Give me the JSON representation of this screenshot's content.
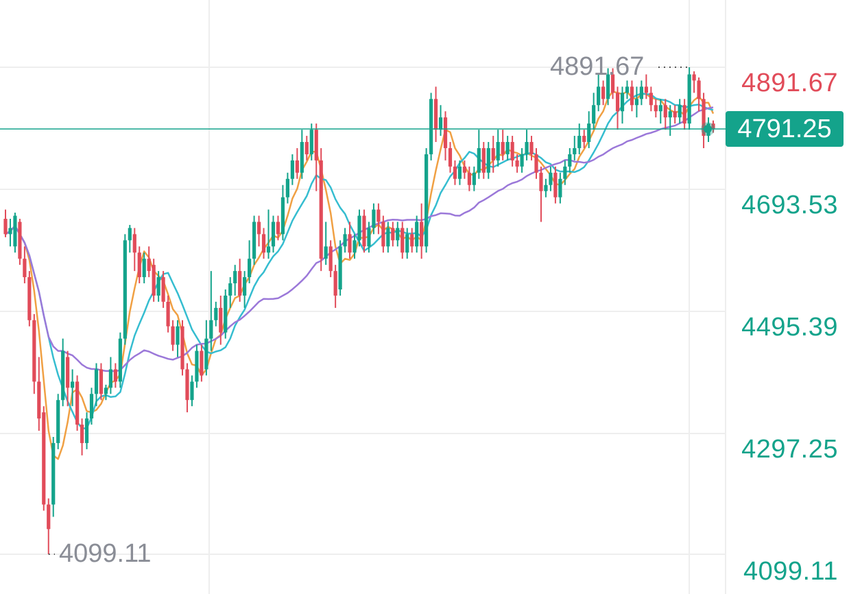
{
  "colors": {
    "up": "#14a38b",
    "down": "#e14b59",
    "ma_fast": "#f0a043",
    "ma_mid": "#35bdd0",
    "ma_slow": "#9b78d9",
    "grid": "#eeeeee",
    "price_tag_bg": "#14a38b"
  },
  "chart_data": {
    "type": "candlestick",
    "y_axis_ticks": [
      "4891.67",
      "4693.53",
      "4495.39",
      "4297.25",
      "4099.11"
    ],
    "top_tick_highlight": "4891.67",
    "current_price": "4791.25",
    "period_high_label": "4891.67",
    "period_low_label": "4099.11",
    "ylim": [
      4099.11,
      4891.67
    ],
    "grid": true,
    "candles": [
      [
        4645,
        4620,
        4660,
        4615
      ],
      [
        4620,
        4630,
        4645,
        4600
      ],
      [
        4600,
        4650,
        4655,
        4590
      ],
      [
        4640,
        4580,
        4645,
        4570
      ],
      [
        4580,
        4550,
        4600,
        4540
      ],
      [
        4550,
        4480,
        4560,
        4470
      ],
      [
        4480,
        4380,
        4490,
        4360
      ],
      [
        4380,
        4320,
        4420,
        4300
      ],
      [
        4330,
        4180,
        4340,
        4170
      ],
      [
        4180,
        4140,
        4190,
        4099.11
      ],
      [
        4180,
        4280,
        4290,
        4160
      ],
      [
        4280,
        4350,
        4360,
        4270
      ],
      [
        4350,
        4430,
        4450,
        4340
      ],
      [
        4420,
        4370,
        4430,
        4340
      ],
      [
        4370,
        4380,
        4400,
        4340
      ],
      [
        4380,
        4310,
        4390,
        4300
      ],
      [
        4310,
        4280,
        4320,
        4260
      ],
      [
        4280,
        4320,
        4330,
        4270
      ],
      [
        4320,
        4360,
        4370,
        4310
      ],
      [
        4360,
        4400,
        4410,
        4340
      ],
      [
        4400,
        4360,
        4410,
        4350
      ],
      [
        4360,
        4370,
        4375,
        4350
      ],
      [
        4370,
        4400,
        4420,
        4360
      ],
      [
        4400,
        4380,
        4410,
        4370
      ],
      [
        4380,
        4450,
        4460,
        4370
      ],
      [
        4450,
        4610,
        4620,
        4440
      ],
      [
        4610,
        4630,
        4635,
        4590
      ],
      [
        4620,
        4590,
        4630,
        4560
      ],
      [
        4590,
        4550,
        4600,
        4540
      ],
      [
        4550,
        4580,
        4590,
        4540
      ],
      [
        4580,
        4560,
        4600,
        4550
      ],
      [
        4570,
        4520,
        4580,
        4510
      ],
      [
        4520,
        4550,
        4560,
        4510
      ],
      [
        4550,
        4510,
        4560,
        4500
      ],
      [
        4510,
        4470,
        4520,
        4460
      ],
      [
        4470,
        4440,
        4480,
        4430
      ],
      [
        4440,
        4470,
        4480,
        4420
      ],
      [
        4470,
        4400,
        4480,
        4390
      ],
      [
        4400,
        4350,
        4410,
        4330
      ],
      [
        4350,
        4380,
        4390,
        4340
      ],
      [
        4380,
        4430,
        4440,
        4370
      ],
      [
        4430,
        4390,
        4440,
        4380
      ],
      [
        4400,
        4450,
        4480,
        4390
      ],
      [
        4450,
        4480,
        4560,
        4430
      ],
      [
        4480,
        4500,
        4510,
        4470
      ],
      [
        4500,
        4460,
        4520,
        4440
      ],
      [
        4460,
        4520,
        4530,
        4450
      ],
      [
        4520,
        4540,
        4550,
        4500
      ],
      [
        4540,
        4560,
        4570,
        4520
      ],
      [
        4560,
        4520,
        4580,
        4510
      ],
      [
        4520,
        4550,
        4560,
        4500
      ],
      [
        4550,
        4580,
        4610,
        4540
      ],
      [
        4580,
        4640,
        4650,
        4570
      ],
      [
        4640,
        4620,
        4650,
        4600
      ],
      [
        4620,
        4590,
        4630,
        4580
      ],
      [
        4590,
        4600,
        4660,
        4580
      ],
      [
        4600,
        4640,
        4650,
        4590
      ],
      [
        4640,
        4620,
        4650,
        4610
      ],
      [
        4620,
        4680,
        4700,
        4610
      ],
      [
        4680,
        4710,
        4720,
        4670
      ],
      [
        4710,
        4740,
        4750,
        4700
      ],
      [
        4740,
        4720,
        4760,
        4710
      ],
      [
        4720,
        4770,
        4790,
        4710
      ],
      [
        4770,
        4750,
        4780,
        4740
      ],
      [
        4750,
        4790,
        4800,
        4740
      ],
      [
        4790,
        4740,
        4800,
        4690
      ],
      [
        4740,
        4580,
        4760,
        4560
      ],
      [
        4580,
        4600,
        4640,
        4570
      ],
      [
        4600,
        4560,
        4610,
        4550
      ],
      [
        4560,
        4520,
        4570,
        4500
      ],
      [
        4530,
        4600,
        4610,
        4520
      ],
      [
        4600,
        4620,
        4630,
        4590
      ],
      [
        4620,
        4590,
        4640,
        4580
      ],
      [
        4590,
        4610,
        4620,
        4580
      ],
      [
        4610,
        4650,
        4660,
        4600
      ],
      [
        4650,
        4600,
        4660,
        4590
      ],
      [
        4600,
        4630,
        4640,
        4590
      ],
      [
        4630,
        4660,
        4670,
        4620
      ],
      [
        4660,
        4640,
        4670,
        4620
      ],
      [
        4640,
        4600,
        4650,
        4590
      ],
      [
        4600,
        4630,
        4640,
        4590
      ],
      [
        4630,
        4610,
        4640,
        4600
      ],
      [
        4610,
        4630,
        4640,
        4600
      ],
      [
        4630,
        4590,
        4640,
        4580
      ],
      [
        4590,
        4620,
        4630,
        4580
      ],
      [
        4620,
        4600,
        4630,
        4590
      ],
      [
        4600,
        4640,
        4650,
        4590
      ],
      [
        4640,
        4600,
        4670,
        4580
      ],
      [
        4600,
        4750,
        4760,
        4590
      ],
      [
        4750,
        4840,
        4850,
        4740
      ],
      [
        4840,
        4790,
        4860,
        4770
      ],
      [
        4790,
        4810,
        4830,
        4780
      ],
      [
        4810,
        4760,
        4820,
        4740
      ],
      [
        4760,
        4730,
        4770,
        4720
      ],
      [
        4730,
        4710,
        4740,
        4700
      ],
      [
        4710,
        4730,
        4740,
        4700
      ],
      [
        4730,
        4720,
        4740,
        4710
      ],
      [
        4720,
        4700,
        4730,
        4690
      ],
      [
        4700,
        4720,
        4730,
        4690
      ],
      [
        4720,
        4760,
        4790,
        4710
      ],
      [
        4760,
        4720,
        4770,
        4710
      ],
      [
        4720,
        4760,
        4770,
        4710
      ],
      [
        4760,
        4740,
        4780,
        4720
      ],
      [
        4740,
        4770,
        4790,
        4730
      ],
      [
        4770,
        4750,
        4790,
        4740
      ],
      [
        4750,
        4770,
        4780,
        4740
      ],
      [
        4770,
        4740,
        4780,
        4730
      ],
      [
        4740,
        4730,
        4750,
        4720
      ],
      [
        4730,
        4750,
        4760,
        4720
      ],
      [
        4750,
        4770,
        4790,
        4740
      ],
      [
        4770,
        4750,
        4780,
        4740
      ],
      [
        4750,
        4720,
        4760,
        4710
      ],
      [
        4720,
        4690,
        4730,
        4640
      ],
      [
        4690,
        4700,
        4710,
        4680
      ],
      [
        4700,
        4720,
        4730,
        4690
      ],
      [
        4720,
        4680,
        4730,
        4670
      ],
      [
        4680,
        4710,
        4720,
        4670
      ],
      [
        4710,
        4730,
        4740,
        4700
      ],
      [
        4730,
        4750,
        4760,
        4720
      ],
      [
        4750,
        4760,
        4780,
        4740
      ],
      [
        4760,
        4780,
        4800,
        4750
      ],
      [
        4780,
        4770,
        4790,
        4760
      ],
      [
        4770,
        4800,
        4820,
        4760
      ],
      [
        4800,
        4830,
        4850,
        4790
      ],
      [
        4830,
        4860,
        4880,
        4820
      ],
      [
        4860,
        4840,
        4870,
        4830
      ],
      [
        4840,
        4880,
        4890,
        4830
      ],
      [
        4880,
        4850,
        4890,
        4840
      ],
      [
        4850,
        4820,
        4860,
        4790
      ],
      [
        4820,
        4850,
        4860,
        4800
      ],
      [
        4850,
        4860,
        4870,
        4840
      ],
      [
        4860,
        4830,
        4870,
        4820
      ],
      [
        4830,
        4840,
        4860,
        4810
      ],
      [
        4840,
        4860,
        4870,
        4830
      ],
      [
        4860,
        4850,
        4880,
        4840
      ],
      [
        4850,
        4830,
        4860,
        4820
      ],
      [
        4830,
        4820,
        4840,
        4810
      ],
      [
        4820,
        4830,
        4840,
        4800
      ],
      [
        4830,
        4810,
        4840,
        4790
      ],
      [
        4810,
        4820,
        4830,
        4780
      ],
      [
        4820,
        4810,
        4830,
        4800
      ],
      [
        4810,
        4830,
        4840,
        4800
      ],
      [
        4830,
        4800,
        4840,
        4790
      ],
      [
        4800,
        4880,
        4891.67,
        4790
      ],
      [
        4880,
        4870,
        4885,
        4850
      ],
      [
        4870,
        4840,
        4875,
        4820
      ],
      [
        4840,
        4780,
        4850,
        4760
      ],
      [
        4780,
        4800,
        4810,
        4770
      ],
      [
        4800,
        4791.25,
        4805,
        4785
      ]
    ]
  }
}
